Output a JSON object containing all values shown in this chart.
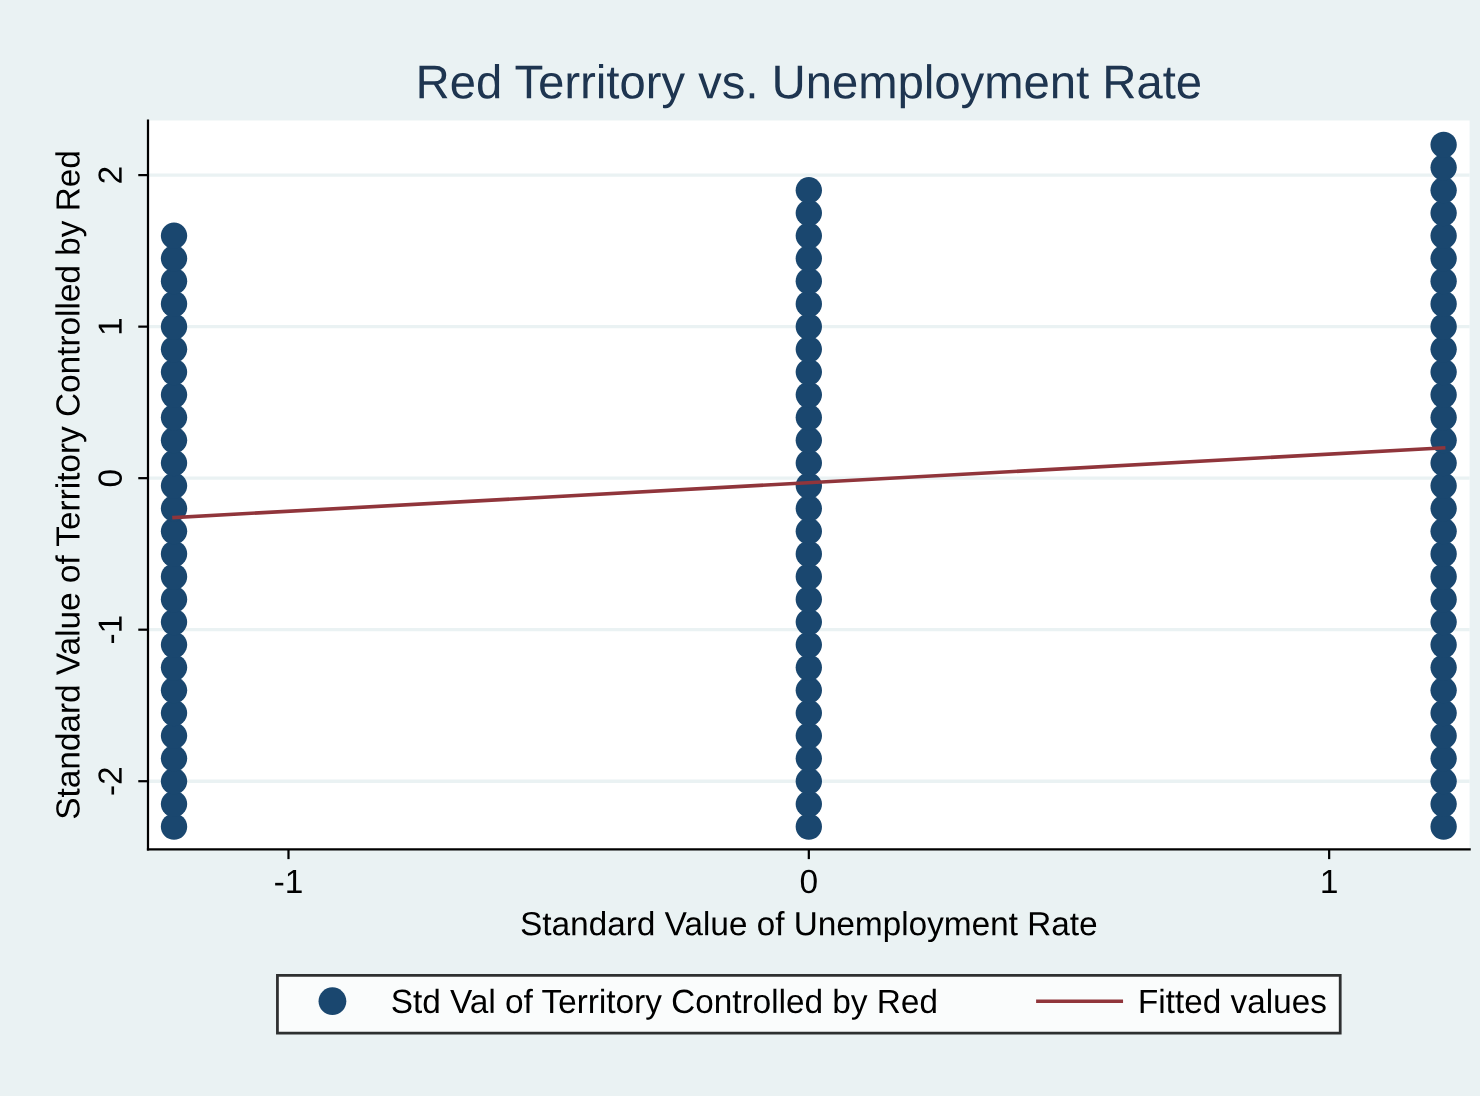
{
  "chart_data": {
    "type": "scatter",
    "title": "Red Territory vs. Unemployment Rate",
    "xlabel": "Standard Value of Unemployment Rate",
    "ylabel": "Standard Value of Territory Controlled by Red",
    "series": [
      {
        "name": "Std Val of Territory Controlled by Red",
        "color": "#1a476f",
        "marker": "circle",
        "x": [
          -1.22,
          -1.22,
          -1.22,
          -1.22,
          -1.22,
          -1.22,
          -1.22,
          -1.22,
          -1.22,
          -1.22,
          -1.22,
          -1.22,
          -1.22,
          -1.22,
          -1.22,
          -1.22,
          -1.22,
          -1.22,
          -1.22,
          -1.22,
          -1.22,
          -1.22,
          -1.22,
          -1.22,
          -1.22,
          -1.22,
          -1.22,
          0,
          0,
          0,
          0,
          0,
          0,
          0,
          0,
          0,
          0,
          0,
          0,
          0,
          0,
          0,
          0,
          0,
          0,
          0,
          0,
          0,
          0,
          0,
          0,
          0,
          0,
          0,
          0,
          0,
          1.22,
          1.22,
          1.22,
          1.22,
          1.22,
          1.22,
          1.22,
          1.22,
          1.22,
          1.22,
          1.22,
          1.22,
          1.22,
          1.22,
          1.22,
          1.22,
          1.22,
          1.22,
          1.22,
          1.22,
          1.22,
          1.22,
          1.22,
          1.22,
          1.22,
          1.22,
          1.22,
          1.22,
          1.22,
          1.22,
          1.22
        ],
        "values": [
          -2.3,
          -2.15,
          -2,
          -1.85,
          -1.7,
          -1.55,
          -1.4,
          -1.25,
          -1.1,
          -0.95,
          -0.8,
          -0.65,
          -0.5,
          -0.35,
          -0.2,
          -0.05,
          0.1,
          0.25,
          0.4,
          0.55,
          0.7,
          0.85,
          1,
          1.15,
          1.3,
          1.45,
          1.6,
          -2.3,
          -2.15,
          -2,
          -1.85,
          -1.7,
          -1.55,
          -1.4,
          -1.25,
          -1.1,
          -0.95,
          -0.8,
          -0.65,
          -0.5,
          -0.35,
          -0.2,
          -0.05,
          0.1,
          0.25,
          0.4,
          0.55,
          0.7,
          0.85,
          1,
          1.15,
          1.3,
          1.45,
          1.6,
          1.75,
          1.9,
          -2.3,
          -2.15,
          -2,
          -1.85,
          -1.7,
          -1.55,
          -1.4,
          -1.25,
          -1.1,
          -0.95,
          -0.8,
          -0.65,
          -0.5,
          -0.35,
          -0.2,
          -0.05,
          0.1,
          0.25,
          0.4,
          0.55,
          0.7,
          0.85,
          1,
          1.15,
          1.3,
          1.45,
          1.6,
          1.75,
          1.9,
          2.05,
          2.2
        ]
      },
      {
        "name": "Fitted values",
        "type": "line",
        "color": "#90353b",
        "line_style": "solid",
        "x": [
          -1.22,
          1.22
        ],
        "values": [
          -0.26,
          0.2
        ]
      }
    ],
    "xlim": [
      -1.27,
      1.27
    ],
    "xticks": [
      -1,
      0,
      1
    ],
    "ylim": [
      -2.45,
      2.36
    ],
    "yticks": [
      -2,
      -1,
      0,
      1,
      2
    ],
    "grid": "y",
    "legend": "bottom"
  }
}
